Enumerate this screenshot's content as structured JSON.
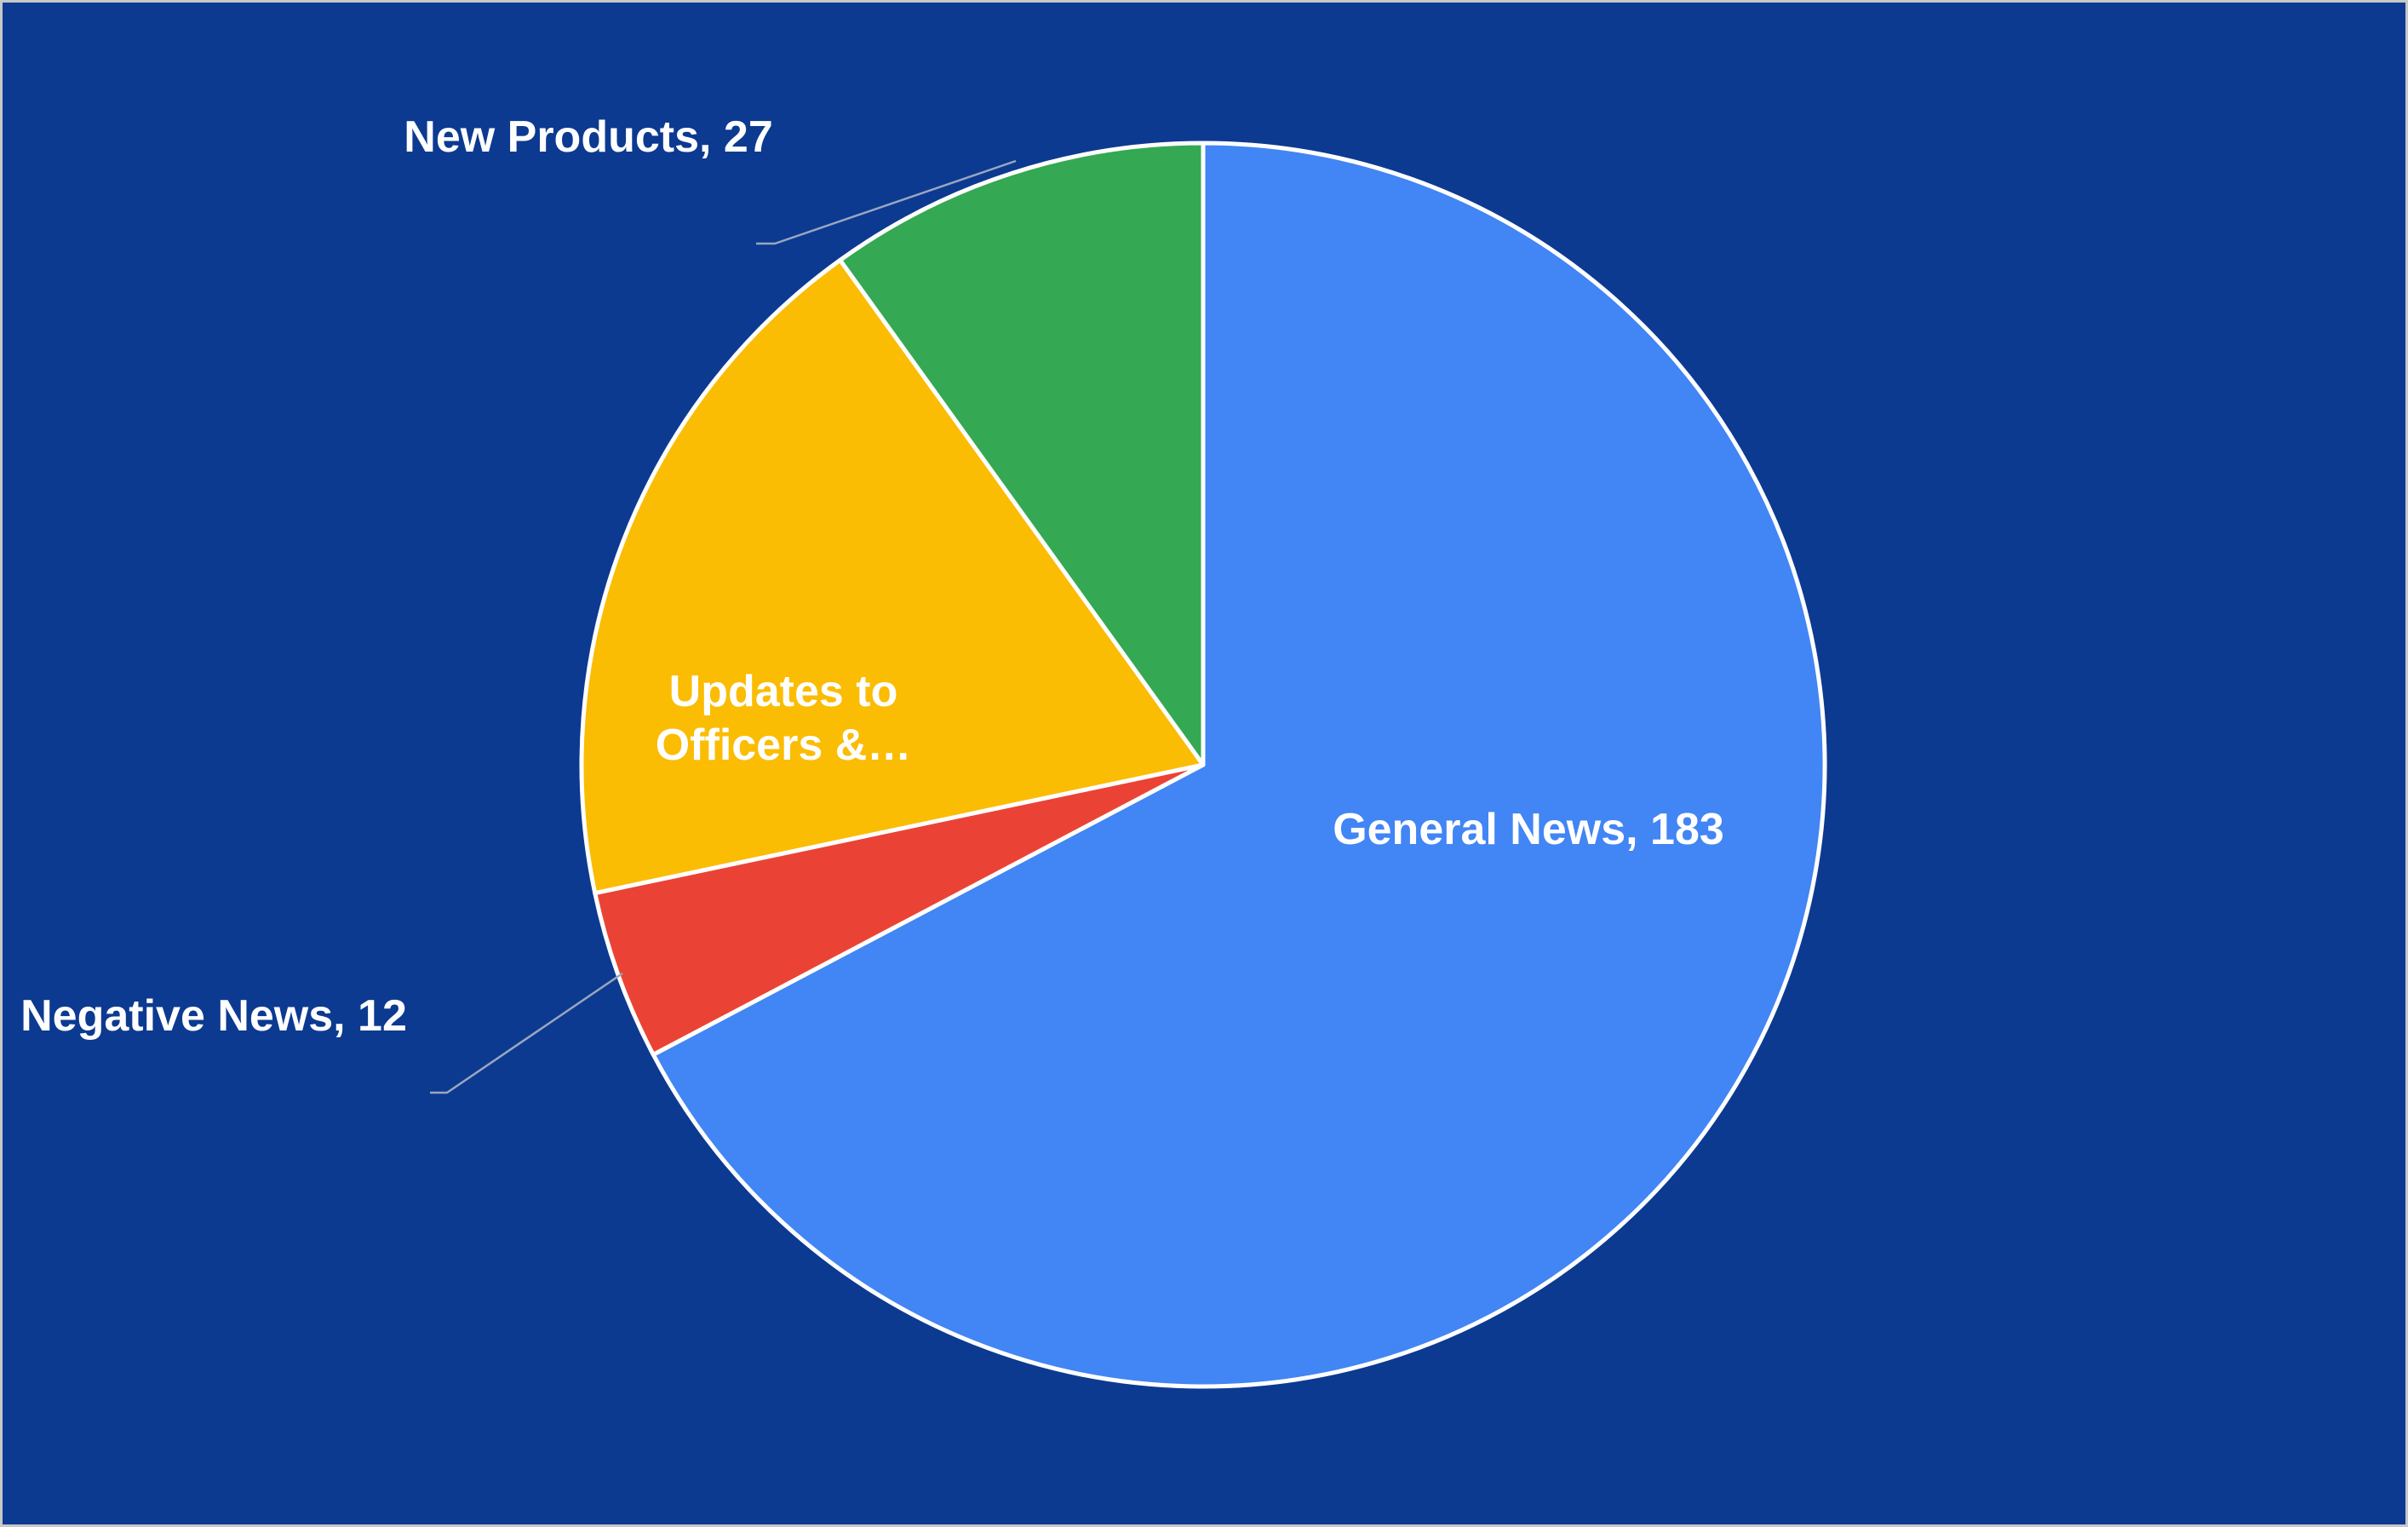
{
  "chart_data": {
    "type": "pie",
    "title": "",
    "start_angle_deg": 0,
    "direction": "clockwise",
    "slice_border_color": "#ffffff",
    "background_color": "#0c3a91",
    "slices": [
      {
        "label": "General News",
        "value": 183,
        "color": "#4285f4",
        "display_label": "General News, 183",
        "label_style": "inside"
      },
      {
        "label": "Negative News",
        "value": 12,
        "color": "#ea4335",
        "display_label": "Negative News, 12",
        "label_style": "leader"
      },
      {
        "label": "Updates to Officers & Directors",
        "value": 50,
        "color": "#fbbc04",
        "display_label": [
          "Updates to",
          "Officers &…"
        ],
        "label_style": "inside"
      },
      {
        "label": "New Products",
        "value": 27,
        "color": "#34a853",
        "display_label": "New Products, 27",
        "label_style": "leader"
      }
    ]
  }
}
